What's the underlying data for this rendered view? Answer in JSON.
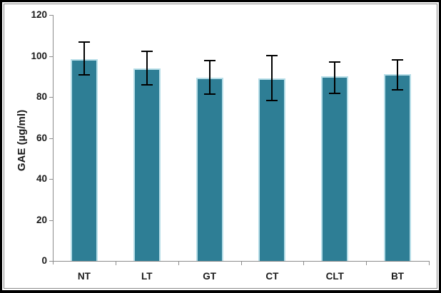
{
  "figure": {
    "background": "#ffffff",
    "outer_border_color": "#000000",
    "inner_border_color": "#8a8a8a"
  },
  "colors": {
    "bar_fill": "#2e7e95",
    "bar_border": "#b7dee8",
    "axis": "#8c8c8c",
    "error_bar": "#000000",
    "label_text": "#1a1a1a"
  },
  "chart_data": {
    "type": "bar",
    "title": "",
    "xlabel": "",
    "ylabel": "GAE (µg/ml)",
    "ylim": [
      0,
      120
    ],
    "yticks": [
      0,
      20,
      40,
      60,
      80,
      100,
      120
    ],
    "grid": false,
    "legend": false,
    "categories": [
      "NT",
      "LT",
      "GT",
      "CT",
      "CLT",
      "BT"
    ],
    "series": [
      {
        "name": "GAE",
        "values": [
          98.5,
          94,
          89.5,
          89,
          90,
          91
        ],
        "error_high": [
          107,
          102.5,
          98,
          100.5,
          97.5,
          98.5
        ],
        "error_low": [
          90.5,
          85.5,
          81,
          78,
          81.5,
          83
        ]
      }
    ]
  }
}
